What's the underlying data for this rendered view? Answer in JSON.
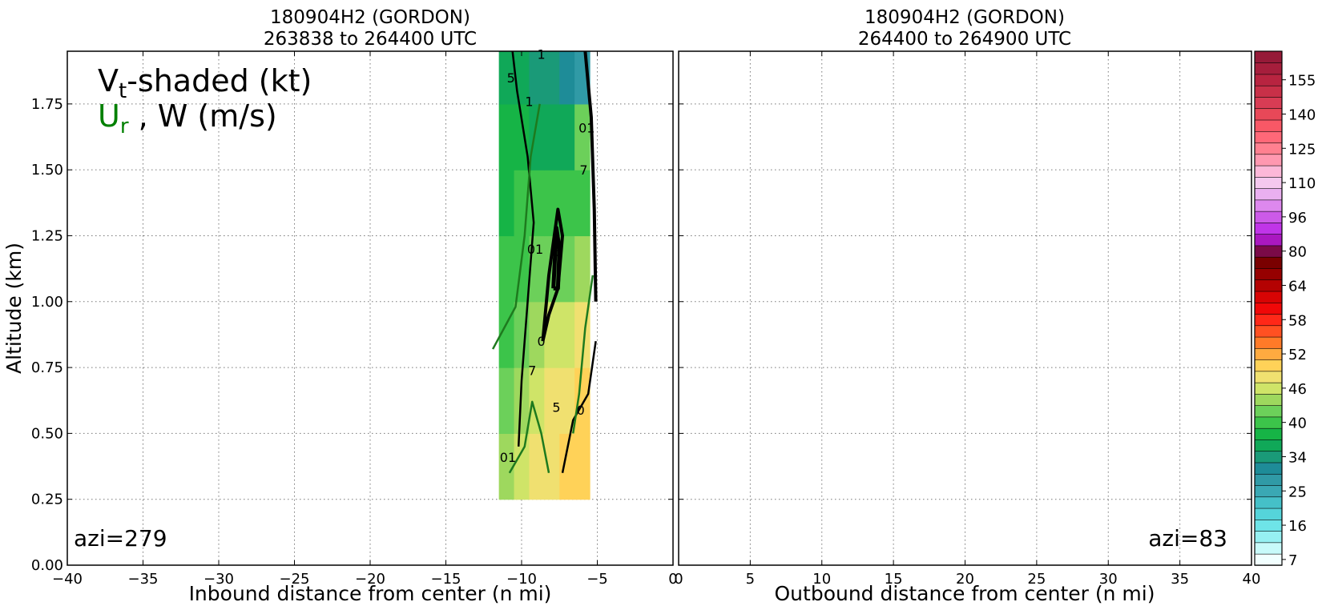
{
  "figure": {
    "left_panel": {
      "title_line1": "180904H2 (GORDON)",
      "title_line2": "263838 to 264400 UTC",
      "xlabel": "Inbound distance from center (n mi)",
      "ylabel": "Altitude (km)",
      "legend_line1_main": "V",
      "legend_line1_sub": "t",
      "legend_line1_rest": "-shaded (kt)",
      "legend_line2_main": "U",
      "legend_line2_sub": "r",
      "legend_line2_rest": " , W (m/s)",
      "legend_ur_color": "#008000",
      "annotation": "azi=279"
    },
    "right_panel": {
      "title_line1": "180904H2 (GORDON)",
      "title_line2": "264400 to 264900 UTC",
      "xlabel": "Outbound distance from center (n mi)",
      "annotation": "azi=83"
    }
  },
  "chart_data": [
    {
      "type": "heatmap",
      "panel": "left",
      "title": "180904H2 (GORDON) 263838 to 264400 UTC",
      "xlabel": "Inbound distance from center (n mi)",
      "ylabel": "Altitude (km)",
      "xlim": [
        -40,
        0
      ],
      "ylim": [
        0.0,
        1.95
      ],
      "x_ticks": [
        -40,
        -35,
        -30,
        -25,
        -20,
        -15,
        -10,
        -5,
        0
      ],
      "x_tick_labels": [
        "−40",
        "−35",
        "−30",
        "−25",
        "−20",
        "−15",
        "−10",
        "−5",
        "0"
      ],
      "y_ticks": [
        0.0,
        0.25,
        0.5,
        0.75,
        1.0,
        1.25,
        1.5,
        1.75
      ],
      "y_tick_labels": [
        "0.00",
        "0.25",
        "0.50",
        "0.75",
        "1.00",
        "1.25",
        "1.50",
        "1.75"
      ],
      "grid": true,
      "shaded_field": "Vt (kt)",
      "shaded_cells_x": [
        -11,
        -10,
        -9,
        -8,
        -7,
        -6
      ],
      "shaded_cells_y": [
        0.375,
        0.625,
        0.875,
        1.125,
        1.375,
        1.625,
        1.875
      ],
      "shaded_values_kt": [
        [
          52,
          55,
          57,
          58,
          60,
          62
        ],
        [
          48,
          52,
          55,
          57,
          59,
          61
        ],
        [
          44,
          47,
          50,
          53,
          55,
          56
        ],
        [
          42,
          44,
          46,
          47,
          47,
          52
        ],
        [
          40,
          42,
          43,
          43,
          42,
          45
        ],
        [
          39,
          40,
          38,
          36,
          37,
          46
        ],
        [
          38,
          36,
          34,
          33,
          30,
          27
        ]
      ],
      "w_contours_ms": [
        {
          "level": 5,
          "x": [
            -10.2,
            -10.0,
            -9.6,
            -9.2,
            -9.6,
            -10.3,
            -10.6
          ],
          "y": [
            0.45,
            0.7,
            1.0,
            1.3,
            1.55,
            1.8,
            1.95
          ]
        },
        {
          "level": 7,
          "x": [
            -8.6,
            -8.2,
            -7.6,
            -7.3,
            -7.6,
            -8.2,
            -8.6
          ],
          "y": [
            0.85,
            1.1,
            1.35,
            1.25,
            1.05,
            0.95,
            0.85
          ]
        },
        {
          "level": 9,
          "x": [
            -7.9,
            -7.7,
            -7.5,
            -7.6,
            -7.9
          ],
          "y": [
            1.05,
            1.28,
            1.2,
            1.05,
            1.05
          ]
        },
        {
          "level": 7,
          "x": [
            -5.8,
            -5.4,
            -5.2,
            -5.1
          ],
          "y": [
            1.95,
            1.7,
            1.35,
            1.0
          ]
        },
        {
          "level": 5,
          "x": [
            -7.3,
            -6.6,
            -5.6,
            -5.1
          ],
          "y": [
            0.35,
            0.55,
            0.65,
            0.85
          ]
        }
      ],
      "ur_contours_ms": [
        {
          "level": 0,
          "x": [
            -11.9,
            -10.4,
            -9.8,
            -9.4,
            -8.8
          ],
          "y": [
            0.82,
            0.98,
            1.25,
            1.55,
            1.75
          ]
        },
        {
          "level": 0,
          "x": [
            -10.8,
            -9.8,
            -9.3,
            -8.7,
            -8.2
          ],
          "y": [
            0.35,
            0.45,
            0.62,
            0.5,
            0.35
          ]
        },
        {
          "level": 0,
          "x": [
            -6.6,
            -6.2,
            -5.8,
            -5.3
          ],
          "y": [
            0.5,
            0.65,
            0.9,
            1.1
          ]
        }
      ],
      "contour_labels": [
        {
          "text": "5",
          "x": -10.7,
          "y": 1.85
        },
        {
          "text": "1",
          "x": -9.5,
          "y": 1.76
        },
        {
          "text": "1",
          "x": -8.7,
          "y": 1.94
        },
        {
          "text": "01",
          "x": -9.1,
          "y": 1.2
        },
        {
          "text": "6",
          "x": -7.6,
          "y": 1.19
        },
        {
          "text": "7",
          "x": -5.9,
          "y": 1.5
        },
        {
          "text": "01",
          "x": -5.7,
          "y": 1.66
        },
        {
          "text": "7",
          "x": -9.3,
          "y": 0.74
        },
        {
          "text": "5",
          "x": -7.7,
          "y": 0.6
        },
        {
          "text": "0",
          "x": -6.1,
          "y": 0.59
        },
        {
          "text": "0",
          "x": -8.7,
          "y": 0.85
        },
        {
          "text": "01",
          "x": -10.9,
          "y": 0.41
        }
      ],
      "annotation": "azi=279"
    },
    {
      "type": "heatmap",
      "panel": "right",
      "title": "180904H2 (GORDON) 264400 to 264900 UTC",
      "xlabel": "Outbound distance from center (n mi)",
      "xlim": [
        0,
        40
      ],
      "ylim": [
        0.0,
        1.95
      ],
      "x_ticks": [
        0,
        5,
        10,
        15,
        20,
        25,
        30,
        35,
        40
      ],
      "x_tick_labels": [
        "0",
        "5",
        "10",
        "15",
        "20",
        "25",
        "30",
        "35",
        "40"
      ],
      "grid": true,
      "shaded_values_kt": [],
      "annotation": "azi=83"
    },
    {
      "type": "colorbar",
      "field": "Vt (kt)",
      "tick_labels": [
        "7",
        "16",
        "25",
        "34",
        "40",
        "46",
        "52",
        "58",
        "64",
        "80",
        "96",
        "110",
        "125",
        "140",
        "155"
      ],
      "colors": [
        "#f2ffff",
        "#c8fafa",
        "#96f0f2",
        "#6ee4e8",
        "#55d4da",
        "#45c0c8",
        "#3aa8b4",
        "#309aa6",
        "#1e8c98",
        "#1a9a78",
        "#10a858",
        "#16b446",
        "#3cc44a",
        "#6cd05a",
        "#9ed85e",
        "#cfe468",
        "#f0e070",
        "#ffd258",
        "#ffaa40",
        "#ff7a28",
        "#ff5022",
        "#ff2818",
        "#f00808",
        "#d80404",
        "#b40202",
        "#960000",
        "#7a0000",
        "#7a0a48",
        "#aa18c0",
        "#c035e8",
        "#cc5ae8",
        "#dd88ee",
        "#eab0f0",
        "#f4c8ee",
        "#fcb8d8",
        "#ff98b0",
        "#ff8090",
        "#ff6878",
        "#f85866",
        "#e84858",
        "#d83c54",
        "#c83048",
        "#b82440",
        "#a61e3c",
        "#961a38"
      ]
    }
  ]
}
